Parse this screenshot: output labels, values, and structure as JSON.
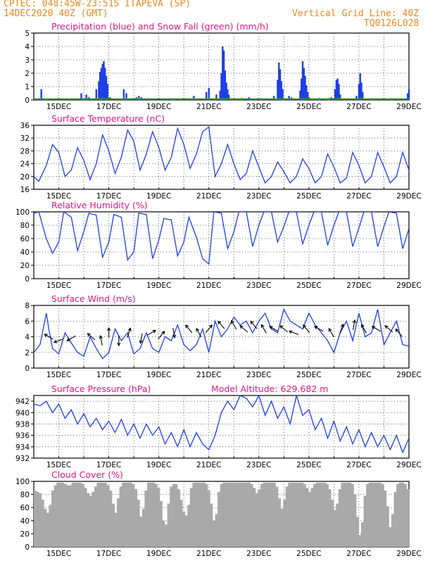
{
  "header": {
    "line1_left": "CPTEC:   048:45W-23:51S   ITAPEVA (SP)",
    "line2_left": "14DEC2020 40Z (GMT)",
    "line2_right": "Vertical Grid Line: 40Z",
    "line3_right": "TQ0126L028"
  },
  "colors": {
    "orange": "#ee8a1c",
    "magenta": "#e0188c",
    "blue": "#1f3fe6",
    "green": "#2aa52a",
    "gray": "#a9a9a9",
    "grid": "#444444"
  },
  "x_ticks": [
    "15DEC",
    "17DEC",
    "19DEC",
    "21DEC",
    "23DEC",
    "25DEC",
    "27DEC",
    "29DEC"
  ],
  "chart_data": [
    {
      "type": "bar",
      "title": "Precipitation (blue) and Snow Fall (green) (mm/h)",
      "ylim": [
        0,
        5
      ],
      "yticks": [
        "0",
        "1",
        "2",
        "3",
        "4",
        "5"
      ],
      "x_range_days": [
        14,
        29
      ],
      "series": [
        {
          "name": "Precipitation",
          "points": [
            [
              14.3,
              0.8
            ],
            [
              15.9,
              0.5
            ],
            [
              16.1,
              0.4
            ],
            [
              16.2,
              0.2
            ],
            [
              16.5,
              0.8
            ],
            [
              16.6,
              1.4
            ],
            [
              16.65,
              2.1
            ],
            [
              16.7,
              2.4
            ],
            [
              16.75,
              2.7
            ],
            [
              16.8,
              2.9
            ],
            [
              16.85,
              2.4
            ],
            [
              16.9,
              1.8
            ],
            [
              16.95,
              1.2
            ],
            [
              17.05,
              0.2
            ],
            [
              17.6,
              0.8
            ],
            [
              17.7,
              0.5
            ],
            [
              18.1,
              0.2
            ],
            [
              18.2,
              0.3
            ],
            [
              18.3,
              0.2
            ],
            [
              18.5,
              0.1
            ],
            [
              19.2,
              0.1
            ],
            [
              20.4,
              0.3
            ],
            [
              20.9,
              0.6
            ],
            [
              21.0,
              0.9
            ],
            [
              21.3,
              0.4
            ],
            [
              21.45,
              0.7
            ],
            [
              21.5,
              2.0
            ],
            [
              21.55,
              4.0
            ],
            [
              21.6,
              3.7
            ],
            [
              21.65,
              2.2
            ],
            [
              21.7,
              1.3
            ],
            [
              21.75,
              0.8
            ],
            [
              21.8,
              0.4
            ],
            [
              22.0,
              0.1
            ],
            [
              22.6,
              0.2
            ],
            [
              23.0,
              0.1
            ],
            [
              23.6,
              0.3
            ],
            [
              23.75,
              1.5
            ],
            [
              23.8,
              2.8
            ],
            [
              23.85,
              2.3
            ],
            [
              23.9,
              1.4
            ],
            [
              23.95,
              0.8
            ],
            [
              24.2,
              0.3
            ],
            [
              24.3,
              0.2
            ],
            [
              24.65,
              0.7
            ],
            [
              24.7,
              1.6
            ],
            [
              24.75,
              2.9
            ],
            [
              24.8,
              2.4
            ],
            [
              24.85,
              1.8
            ],
            [
              24.9,
              1.1
            ],
            [
              24.95,
              0.6
            ],
            [
              25.0,
              0.2
            ],
            [
              25.1,
              0.1
            ],
            [
              25.9,
              0.2
            ],
            [
              26.05,
              0.8
            ],
            [
              26.1,
              1.5
            ],
            [
              26.15,
              1.6
            ],
            [
              26.2,
              1.2
            ],
            [
              26.25,
              0.4
            ],
            [
              26.9,
              0.3
            ],
            [
              27.0,
              1.2
            ],
            [
              27.05,
              2.0
            ],
            [
              27.1,
              1.3
            ],
            [
              27.15,
              0.6
            ],
            [
              28.95,
              0.5
            ],
            [
              29.0,
              0.8
            ]
          ]
        },
        {
          "name": "Snow Fall",
          "points": [
            [
              14.5,
              0.05
            ],
            [
              16.0,
              0.05
            ],
            [
              18.2,
              0.1
            ],
            [
              19.6,
              0.05
            ],
            [
              22.3,
              0.1
            ],
            [
              23.1,
              0.08
            ],
            [
              24.0,
              0.08
            ],
            [
              25.4,
              0.1
            ],
            [
              25.8,
              0.1
            ],
            [
              27.5,
              0.08
            ],
            [
              28.3,
              0.08
            ]
          ]
        }
      ]
    },
    {
      "type": "line",
      "title": "Surface Temperature (nC)",
      "ylim": [
        16,
        36
      ],
      "yticks": [
        "16",
        "20",
        "24",
        "28",
        "32",
        "36"
      ],
      "x": [
        14.0,
        14.2,
        14.5,
        14.75,
        15.0,
        15.25,
        15.5,
        15.75,
        16.0,
        16.25,
        16.5,
        16.75,
        17.0,
        17.25,
        17.5,
        17.75,
        18.0,
        18.25,
        18.5,
        18.75,
        19.0,
        19.25,
        19.5,
        19.75,
        20.0,
        20.25,
        20.5,
        20.75,
        21.0,
        21.25,
        21.5,
        21.75,
        22.0,
        22.25,
        22.5,
        22.75,
        23.0,
        23.25,
        23.5,
        23.75,
        24.0,
        24.25,
        24.5,
        24.75,
        25.0,
        25.25,
        25.5,
        25.75,
        26.0,
        26.25,
        26.5,
        26.75,
        27.0,
        27.25,
        27.5,
        27.75,
        28.0,
        28.25,
        28.5,
        28.75,
        29.0
      ],
      "y": [
        20.0,
        18.5,
        23.5,
        30.0,
        27.5,
        20.0,
        22.0,
        29.0,
        25.0,
        19.0,
        24.0,
        33.0,
        28.0,
        21.0,
        26.0,
        34.5,
        31.0,
        22.0,
        27.0,
        34.0,
        29.0,
        22.0,
        26.0,
        35.0,
        30.0,
        22.5,
        27.0,
        34.0,
        35.5,
        20.0,
        24.0,
        30.0,
        24.0,
        19.0,
        21.0,
        28.0,
        23.0,
        18.0,
        20.0,
        24.5,
        21.5,
        18.0,
        20.0,
        25.5,
        22.5,
        18.0,
        20.0,
        27.0,
        23.0,
        18.0,
        19.5,
        27.5,
        23.5,
        18.0,
        20.0,
        27.5,
        23.0,
        18.0,
        20.0,
        27.5,
        22.0
      ]
    },
    {
      "type": "line",
      "title": "Relative Humidity (%)",
      "ylim": [
        0,
        100
      ],
      "yticks": [
        "0",
        "20",
        "40",
        "60",
        "80",
        "100"
      ],
      "x": [
        14.0,
        14.2,
        14.5,
        14.75,
        15.0,
        15.2,
        15.5,
        15.75,
        16.0,
        16.2,
        16.5,
        16.75,
        17.0,
        17.2,
        17.5,
        17.75,
        18.0,
        18.2,
        18.5,
        18.75,
        19.0,
        19.2,
        19.5,
        19.75,
        20.0,
        20.2,
        20.5,
        20.75,
        21.0,
        21.2,
        21.5,
        21.75,
        22.0,
        22.2,
        22.5,
        22.75,
        23.0,
        23.2,
        23.5,
        23.75,
        24.0,
        24.2,
        24.5,
        24.75,
        25.0,
        25.2,
        25.5,
        25.75,
        26.0,
        26.2,
        26.5,
        26.75,
        27.0,
        27.2,
        27.5,
        27.75,
        28.0,
        28.2,
        28.5,
        28.75,
        29.0
      ],
      "y": [
        98.0,
        100.0,
        60.0,
        38.0,
        55.0,
        100.0,
        92.0,
        42.0,
        70.0,
        98.0,
        95.0,
        32.0,
        55.0,
        96.0,
        92.0,
        28.0,
        40.0,
        98.0,
        96.0,
        30.0,
        58.0,
        90.0,
        88.0,
        34.0,
        55.0,
        92.0,
        62.0,
        30.0,
        22.0,
        100.0,
        98.0,
        45.0,
        70.0,
        100.0,
        100.0,
        48.0,
        80.0,
        100.0,
        100.0,
        55.0,
        78.0,
        100.0,
        100.0,
        52.0,
        80.0,
        100.0,
        100.0,
        50.0,
        80.0,
        100.0,
        100.0,
        48.0,
        76.0,
        100.0,
        100.0,
        48.0,
        78.0,
        100.0,
        98.0,
        45.0,
        75.0
      ]
    },
    {
      "type": "line",
      "title": "Surface Wind (m/s)",
      "ylim": [
        0,
        8
      ],
      "yticks": [
        "0",
        "2",
        "4",
        "6",
        "8"
      ],
      "x": [
        14.0,
        14.25,
        14.5,
        14.6,
        14.75,
        15.0,
        15.25,
        15.5,
        15.75,
        16.0,
        16.25,
        16.5,
        16.75,
        17.0,
        17.25,
        17.5,
        17.75,
        18.0,
        18.25,
        18.5,
        18.75,
        19.0,
        19.25,
        19.5,
        19.75,
        20.0,
        20.25,
        20.5,
        20.75,
        21.0,
        21.25,
        21.5,
        21.75,
        22.0,
        22.25,
        22.5,
        22.75,
        23.0,
        23.25,
        23.5,
        23.75,
        24.0,
        24.25,
        24.5,
        24.75,
        25.0,
        25.25,
        25.5,
        25.75,
        26.0,
        26.25,
        26.5,
        26.75,
        27.0,
        27.25,
        27.5,
        27.75,
        28.0,
        28.25,
        28.5,
        28.75,
        29.0
      ],
      "y": [
        2.0,
        3.0,
        7.0,
        5.0,
        2.5,
        1.8,
        4.5,
        3.2,
        2.0,
        1.5,
        4.0,
        2.5,
        1.2,
        2.0,
        5.0,
        3.5,
        4.5,
        1.8,
        2.5,
        4.5,
        2.5,
        2.0,
        4.0,
        3.5,
        5.5,
        3.0,
        2.2,
        3.0,
        5.0,
        2.0,
        6.0,
        4.0,
        5.0,
        6.5,
        5.5,
        6.0,
        4.5,
        6.0,
        7.0,
        5.0,
        4.5,
        7.5,
        6.0,
        5.5,
        5.0,
        7.0,
        5.5,
        4.5,
        3.5,
        2.0,
        4.5,
        6.0,
        3.5,
        7.0,
        4.0,
        4.5,
        7.5,
        3.0,
        4.5,
        6.0,
        3.0,
        2.8
      ],
      "arrows": [
        {
          "x": 14.6,
          "speed": 4.0,
          "dir_deg": 300
        },
        {
          "x": 15.0,
          "speed": 3.5,
          "dir_deg": 250
        },
        {
          "x": 15.5,
          "speed": 3.8,
          "dir_deg": 240
        },
        {
          "x": 16.3,
          "speed": 4.0,
          "dir_deg": 310
        },
        {
          "x": 16.7,
          "speed": 3.5,
          "dir_deg": 350
        },
        {
          "x": 17.0,
          "speed": 4.5,
          "dir_deg": 0
        },
        {
          "x": 17.4,
          "speed": 3.5,
          "dir_deg": 180
        },
        {
          "x": 17.8,
          "speed": 4.5,
          "dir_deg": 20
        },
        {
          "x": 18.3,
          "speed": 3.8,
          "dir_deg": 190
        },
        {
          "x": 18.7,
          "speed": 4.5,
          "dir_deg": 60
        },
        {
          "x": 19.1,
          "speed": 4.2,
          "dir_deg": 40
        },
        {
          "x": 19.6,
          "speed": 4.5,
          "dir_deg": 170
        },
        {
          "x": 20.2,
          "speed": 5.0,
          "dir_deg": 320
        },
        {
          "x": 20.6,
          "speed": 4.5,
          "dir_deg": 330
        },
        {
          "x": 21.0,
          "speed": 5.0,
          "dir_deg": 40
        },
        {
          "x": 21.5,
          "speed": 5.5,
          "dir_deg": 320
        },
        {
          "x": 22.0,
          "speed": 5.5,
          "dir_deg": 330
        },
        {
          "x": 22.4,
          "speed": 5.0,
          "dir_deg": 310
        },
        {
          "x": 22.8,
          "speed": 5.5,
          "dir_deg": 320
        },
        {
          "x": 23.2,
          "speed": 5.0,
          "dir_deg": 330
        },
        {
          "x": 23.6,
          "speed": 5.0,
          "dir_deg": 300
        },
        {
          "x": 24.0,
          "speed": 5.0,
          "dir_deg": 310
        },
        {
          "x": 24.4,
          "speed": 4.5,
          "dir_deg": 290
        },
        {
          "x": 24.9,
          "speed": 5.0,
          "dir_deg": 320
        },
        {
          "x": 25.4,
          "speed": 5.0,
          "dir_deg": 300
        },
        {
          "x": 25.9,
          "speed": 4.5,
          "dir_deg": 330
        },
        {
          "x": 26.3,
          "speed": 5.0,
          "dir_deg": 20
        },
        {
          "x": 26.8,
          "speed": 5.5,
          "dir_deg": 10
        },
        {
          "x": 27.2,
          "speed": 5.0,
          "dir_deg": 330
        },
        {
          "x": 27.7,
          "speed": 5.0,
          "dir_deg": 300
        },
        {
          "x": 28.2,
          "speed": 5.0,
          "dir_deg": 310
        },
        {
          "x": 28.6,
          "speed": 4.5,
          "dir_deg": 320
        }
      ]
    },
    {
      "type": "line",
      "title": "Surface Pressure (hPa)",
      "annotation": "Model Altitude:  629.682  m",
      "ylim": [
        932,
        943
      ],
      "yticks": [
        "932",
        "934",
        "936",
        "938",
        "940",
        "942"
      ],
      "x": [
        14.0,
        14.25,
        14.5,
        14.75,
        15.0,
        15.25,
        15.5,
        15.75,
        16.0,
        16.25,
        16.5,
        16.75,
        17.0,
        17.25,
        17.5,
        17.75,
        18.0,
        18.25,
        18.5,
        18.75,
        19.0,
        19.25,
        19.5,
        19.75,
        20.0,
        20.25,
        20.5,
        20.75,
        21.0,
        21.25,
        21.5,
        21.75,
        22.0,
        22.25,
        22.5,
        22.75,
        23.0,
        23.25,
        23.5,
        23.75,
        24.0,
        24.25,
        24.5,
        24.75,
        25.0,
        25.25,
        25.5,
        25.75,
        26.0,
        26.25,
        26.5,
        26.75,
        27.0,
        27.25,
        27.5,
        27.75,
        28.0,
        28.25,
        28.5,
        28.75,
        29.0
      ],
      "y": [
        941.5,
        941.2,
        942.0,
        940.0,
        941.5,
        939.0,
        940.5,
        938.0,
        939.8,
        937.5,
        939.0,
        937.0,
        938.5,
        936.5,
        938.8,
        936.0,
        938.0,
        935.5,
        938.0,
        936.0,
        937.5,
        934.5,
        936.5,
        934.0,
        937.0,
        934.0,
        936.5,
        934.5,
        933.5,
        936.0,
        940.0,
        942.0,
        940.5,
        943.0,
        942.5,
        941.0,
        943.0,
        939.5,
        942.0,
        939.0,
        941.0,
        938.0,
        943.0,
        939.5,
        940.5,
        937.0,
        939.0,
        935.5,
        938.5,
        935.0,
        937.5,
        934.5,
        937.0,
        934.0,
        936.5,
        934.0,
        936.0,
        933.5,
        936.0,
        933.0,
        935.5
      ]
    },
    {
      "type": "bar",
      "title": "Cloud Cover (%)",
      "ylim": [
        0,
        100
      ],
      "yticks": [
        "0",
        "20",
        "40",
        "60",
        "80",
        "100"
      ],
      "x_range_days": [
        14,
        29
      ],
      "samples": [
        86,
        84,
        82,
        72,
        58,
        52,
        64,
        86,
        94,
        98,
        98,
        98,
        96,
        94,
        94,
        98,
        98,
        98,
        98,
        96,
        90,
        82,
        78,
        84,
        92,
        98,
        98,
        98,
        98,
        94,
        86,
        66,
        52,
        74,
        92,
        98,
        98,
        98,
        98,
        96,
        88,
        72,
        46,
        58,
        86,
        98,
        98,
        98,
        96,
        90,
        70,
        40,
        34,
        66,
        92,
        96,
        96,
        88,
        72,
        54,
        48,
        64,
        90,
        98,
        98,
        98,
        98,
        98,
        96,
        86,
        66,
        40,
        50,
        84,
        96,
        98,
        98,
        98,
        98,
        98,
        98,
        98,
        98,
        98,
        98,
        98,
        96,
        90,
        82,
        88,
        96,
        98,
        98,
        98,
        98,
        98,
        92,
        74,
        58,
        72,
        92,
        98,
        98,
        98,
        98,
        98,
        98,
        96,
        90,
        84,
        90,
        96,
        98,
        98,
        98,
        98,
        96,
        88,
        72,
        56,
        66,
        88,
        98,
        98,
        98,
        98,
        96,
        80,
        46,
        18,
        38,
        78,
        96,
        98,
        98,
        98,
        98,
        98,
        96,
        86,
        62,
        30,
        50,
        84,
        96,
        98,
        98,
        96,
        88
      ]
    }
  ]
}
